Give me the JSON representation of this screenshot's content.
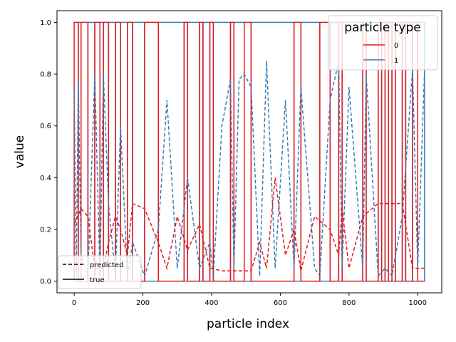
{
  "chart_data": {
    "type": "line",
    "title": "",
    "xlabel": "particle index",
    "ylabel": "value",
    "xlim": [
      -50,
      1070
    ],
    "ylim": [
      -0.045,
      1.045
    ],
    "xticks": [
      0,
      200,
      400,
      600,
      800,
      1000
    ],
    "yticks": [
      0.0,
      0.2,
      0.4,
      0.6,
      0.8,
      1.0
    ],
    "grid": false,
    "colors": {
      "type_0": "#e41a1c",
      "type_1": "#377eb8"
    },
    "legend_particle_type": {
      "title": "particle type",
      "placement": "top-right",
      "entries": [
        {
          "label": "0",
          "color": "#e41a1c"
        },
        {
          "label": "1",
          "color": "#377eb8"
        }
      ]
    },
    "legend_line_style": {
      "placement": "bottom-left",
      "entries": [
        {
          "label": "predicted",
          "style": "dashed"
        },
        {
          "label": "true",
          "style": "solid"
        }
      ]
    },
    "type0_true_segments": [
      [
        0,
        12
      ],
      [
        20,
        40
      ],
      [
        60,
        75
      ],
      [
        85,
        100
      ],
      [
        120,
        135
      ],
      [
        155,
        170
      ],
      [
        205,
        245
      ],
      [
        320,
        330
      ],
      [
        365,
        375
      ],
      [
        395,
        405
      ],
      [
        455,
        465
      ],
      [
        495,
        515
      ],
      [
        640,
        660
      ],
      [
        715,
        745
      ],
      [
        770,
        780
      ],
      [
        840,
        850
      ],
      [
        885,
        895
      ],
      [
        905,
        915
      ],
      [
        925,
        935
      ],
      [
        955,
        965
      ],
      [
        985,
        1000
      ]
    ],
    "type1_predicted": [
      [
        0,
        0.75
      ],
      [
        6,
        0.02
      ],
      [
        12,
        0.78
      ],
      [
        20,
        0.1
      ],
      [
        40,
        0.02
      ],
      [
        60,
        0.8
      ],
      [
        75,
        0.02
      ],
      [
        85,
        0.8
      ],
      [
        100,
        0.3
      ],
      [
        120,
        0.02
      ],
      [
        135,
        0.6
      ],
      [
        155,
        0.02
      ],
      [
        170,
        0.15
      ],
      [
        205,
        0.02
      ],
      [
        245,
        0.2
      ],
      [
        270,
        0.7
      ],
      [
        300,
        0.05
      ],
      [
        330,
        0.4
      ],
      [
        365,
        0.05
      ],
      [
        395,
        0.15
      ],
      [
        405,
        0.02
      ],
      [
        430,
        0.6
      ],
      [
        455,
        0.78
      ],
      [
        465,
        0.05
      ],
      [
        480,
        0.78
      ],
      [
        495,
        0.8
      ],
      [
        515,
        0.75
      ],
      [
        540,
        0.02
      ],
      [
        560,
        0.85
      ],
      [
        585,
        0.05
      ],
      [
        615,
        0.7
      ],
      [
        640,
        0.05
      ],
      [
        660,
        0.75
      ],
      [
        700,
        0.05
      ],
      [
        715,
        0.02
      ],
      [
        745,
        0.7
      ],
      [
        770,
        0.85
      ],
      [
        780,
        0.05
      ],
      [
        800,
        0.75
      ],
      [
        840,
        0.05
      ],
      [
        850,
        0.8
      ],
      [
        885,
        0.02
      ],
      [
        905,
        0.05
      ],
      [
        925,
        0.02
      ],
      [
        955,
        0.25
      ],
      [
        985,
        0.82
      ],
      [
        1000,
        0.05
      ],
      [
        1020,
        0.82
      ]
    ],
    "type0_predicted": [
      [
        0,
        0.22
      ],
      [
        20,
        0.28
      ],
      [
        40,
        0.25
      ],
      [
        60,
        0.05
      ],
      [
        85,
        0.05
      ],
      [
        100,
        0.15
      ],
      [
        120,
        0.25
      ],
      [
        135,
        0.2
      ],
      [
        155,
        0.1
      ],
      [
        170,
        0.3
      ],
      [
        205,
        0.28
      ],
      [
        245,
        0.15
      ],
      [
        270,
        0.05
      ],
      [
        300,
        0.25
      ],
      [
        330,
        0.12
      ],
      [
        365,
        0.22
      ],
      [
        395,
        0.05
      ],
      [
        430,
        0.04
      ],
      [
        480,
        0.04
      ],
      [
        495,
        0.04
      ],
      [
        515,
        0.04
      ],
      [
        540,
        0.15
      ],
      [
        560,
        0.05
      ],
      [
        585,
        0.4
      ],
      [
        615,
        0.1
      ],
      [
        640,
        0.2
      ],
      [
        660,
        0.04
      ],
      [
        700,
        0.25
      ],
      [
        745,
        0.2
      ],
      [
        770,
        0.1
      ],
      [
        780,
        0.28
      ],
      [
        800,
        0.05
      ],
      [
        840,
        0.25
      ],
      [
        885,
        0.3
      ],
      [
        925,
        0.3
      ],
      [
        955,
        0.3
      ],
      [
        985,
        0.05
      ],
      [
        1020,
        0.05
      ]
    ]
  }
}
